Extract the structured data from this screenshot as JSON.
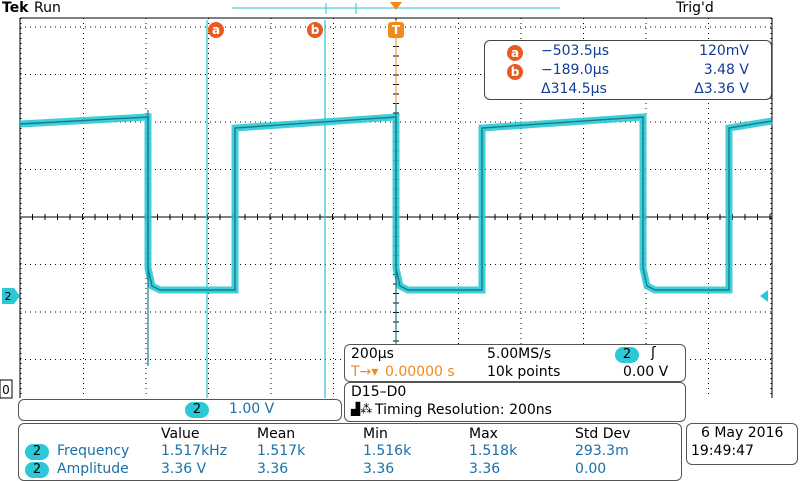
{
  "header": {
    "brand": "Tek",
    "state": "Run",
    "trigger_status": "Trig'd"
  },
  "cursors": {
    "a_label": "a",
    "b_label": "b",
    "trigger_label": "T",
    "readout": [
      {
        "id": "a",
        "time": "−503.5μs",
        "value": "120mV"
      },
      {
        "id": "b",
        "time": "−189.0μs",
        "value": "3.48 V"
      },
      {
        "id": "delta",
        "time": "Δ314.5μs",
        "value": "Δ3.36 V"
      }
    ]
  },
  "channel": {
    "number": "2",
    "marker": "2",
    "scale": "1.00 V",
    "zero_marker": "0"
  },
  "timebase": {
    "time_per_div": "200μs",
    "sample_rate": "5.00MS/s",
    "trigger_offset": "0.00000 s",
    "record_length": "10k points",
    "trigger_channel": "2",
    "trigger_level": "0.00 V"
  },
  "digital": {
    "channels": "D15–D0",
    "timing_resolution": "Timing Resolution: 200ns"
  },
  "measurements": {
    "headers": [
      "Value",
      "Mean",
      "Min",
      "Max",
      "Std Dev"
    ],
    "rows": [
      {
        "channel": "2",
        "label": "Frequency",
        "value": "1.517kHz",
        "mean": "1.517k",
        "min": "1.516k",
        "max": "1.518k",
        "std": "293.3m"
      },
      {
        "channel": "2",
        "label": "Amplitude",
        "value": "3.36 V",
        "mean": "3.36",
        "min": "3.36",
        "max": "3.36",
        "std": "0.00"
      }
    ]
  },
  "datetime": {
    "date": "6 May 2016",
    "time": "19:49:47"
  },
  "colors": {
    "trace": "#1a9aa4",
    "trace_fill": "#2bc9d6",
    "cursor": "#29c3d0",
    "trigger": "#f08a1c",
    "cursor_badge": "#e85a1e",
    "grid": "#000000"
  }
}
